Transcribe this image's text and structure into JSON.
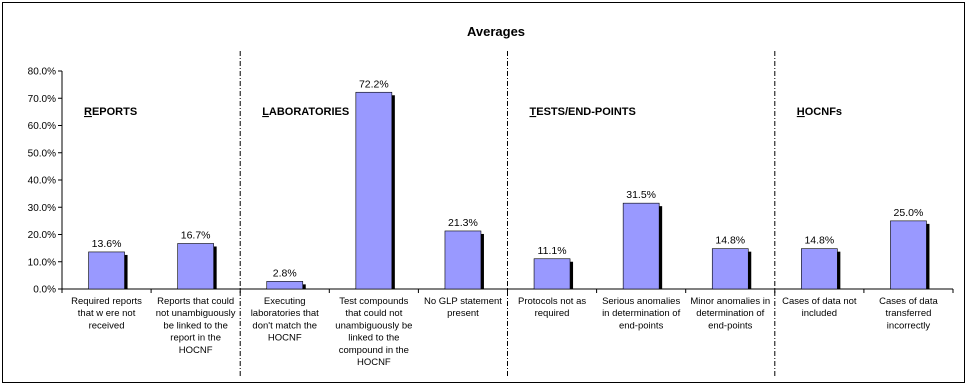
{
  "chart_data": {
    "type": "bar",
    "title": "Averages",
    "xlabel": "",
    "ylabel": "",
    "ylim": [
      0,
      80
    ],
    "yticks": [
      "0.0%",
      "10.0%",
      "20.0%",
      "30.0%",
      "40.0%",
      "50.0%",
      "60.0%",
      "70.0%",
      "80.0%"
    ],
    "grid": false,
    "bar_color": "#9999ff",
    "shadow_color": "#000000",
    "categories": [
      [
        "Required reports",
        "that w ere not",
        "received"
      ],
      [
        "Reports that could",
        "not unambiguously",
        "be linked to the",
        "report in the",
        "HOCNF"
      ],
      [
        "Executing",
        "laboratories that",
        "don't match the",
        "HOCNF"
      ],
      [
        "Test compounds",
        "that could not",
        "unambiguously be",
        "linked to the",
        "compound in the",
        "HOCNF"
      ],
      [
        "No GLP statement",
        "present"
      ],
      [
        "Protocols not as",
        "required"
      ],
      [
        "Serious anomalies",
        "in determination of",
        "end-points"
      ],
      [
        "Minor anomalies in",
        "determination of",
        "end-points"
      ],
      [
        "Cases of data not",
        "included"
      ],
      [
        "Cases of data",
        "transferred",
        "incorrectly"
      ]
    ],
    "values": [
      13.6,
      16.7,
      2.8,
      72.2,
      21.3,
      11.1,
      31.5,
      14.8,
      14.8,
      25.0
    ],
    "value_labels": [
      "13.6%",
      "16.7%",
      "2.8%",
      "72.2%",
      "21.3%",
      "11.1%",
      "31.5%",
      "14.8%",
      "14.8%",
      "25.0%"
    ],
    "groups": [
      {
        "label": "REPORTS",
        "start": 0,
        "end": 1
      },
      {
        "label": "LABORATORIES",
        "start": 2,
        "end": 4
      },
      {
        "label": "TESTS/END-POINTS",
        "start": 5,
        "end": 7
      },
      {
        "label": "HOCNFs",
        "start": 8,
        "end": 9
      }
    ]
  }
}
